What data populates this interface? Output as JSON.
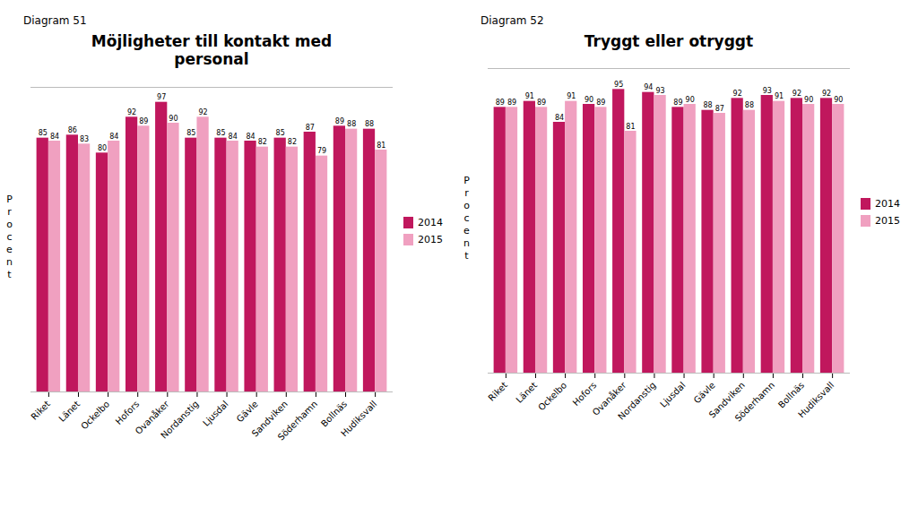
{
  "chart_data": [
    {
      "type": "bar",
      "title": "Möjligheter till kontakt med\npersonal",
      "annotations": [
        "Diagram 51"
      ],
      "ylabel": "Procent",
      "categories": [
        "Riket",
        "Länet",
        "Ockelbo",
        "Hofors",
        "Ovanåker",
        "Nordanstig",
        "Ljusdal",
        "Gävle",
        "Sandviken",
        "Söderhamn",
        "Bollnäs",
        "Hudiksvall"
      ],
      "series": [
        {
          "name": "2014",
          "color": "#C0175D",
          "values": [
            85,
            86,
            80,
            92,
            97,
            85,
            85,
            84,
            85,
            87,
            89,
            88
          ]
        },
        {
          "name": "2015",
          "color": "#F0A0C0",
          "values": [
            84,
            83,
            84,
            89,
            90,
            92,
            84,
            82,
            82,
            79,
            88,
            81
          ]
        }
      ],
      "ylim": [
        0,
        102
      ],
      "grid": false,
      "legend": "right",
      "data_labels": true,
      "tick_labels": "x"
    },
    {
      "type": "bar",
      "title": "Tryggt eller otryggt",
      "annotations": [
        "Diagram 52"
      ],
      "ylabel": "Procent",
      "categories": [
        "Riket",
        "Länet",
        "Ockelbo",
        "Hofors",
        "Ovanåker",
        "Nordanstig",
        "Ljusdal",
        "Gävle",
        "Sandviken",
        "Söderhamn",
        "Bollnäs",
        "Hudiksvall"
      ],
      "series": [
        {
          "name": "2014",
          "color": "#C0175D",
          "values": [
            89,
            91,
            84,
            90,
            95,
            94,
            89,
            88,
            92,
            93,
            92,
            92
          ]
        },
        {
          "name": "2015",
          "color": "#F0A0C0",
          "values": [
            89,
            89,
            91,
            89,
            81,
            93,
            90,
            87,
            88,
            91,
            90,
            90
          ]
        }
      ],
      "ylim": [
        0,
        102
      ],
      "grid": false,
      "legend": "right",
      "data_labels": true,
      "tick_labels": "x"
    }
  ]
}
